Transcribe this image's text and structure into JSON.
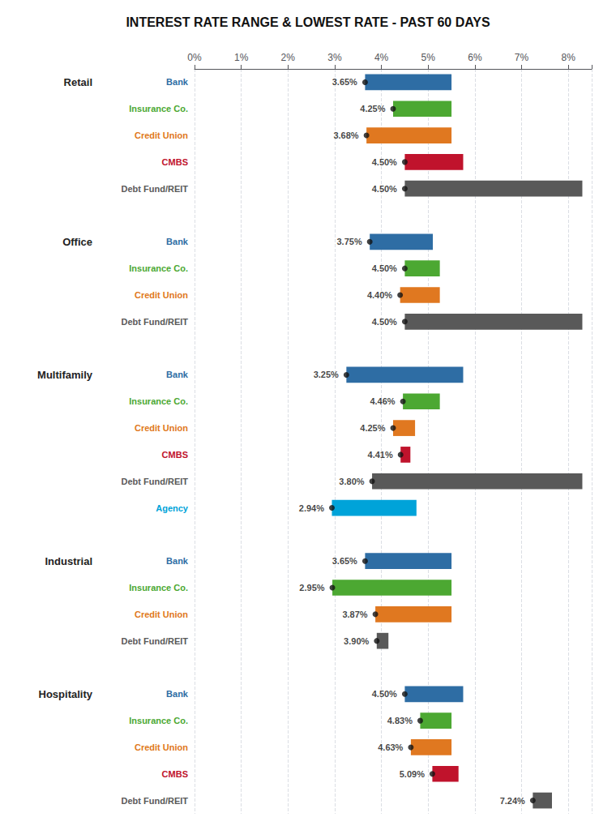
{
  "chart_data": {
    "type": "bar",
    "orientation": "horizontal",
    "title": "INTEREST RATE RANGE & LOWEST RATE - PAST 60 DAYS",
    "xlim": [
      0,
      8.5
    ],
    "xticks": [
      {
        "value": 0,
        "label": "0%"
      },
      {
        "value": 1,
        "label": "1%"
      },
      {
        "value": 2,
        "label": "2%"
      },
      {
        "value": 3,
        "label": "3%"
      },
      {
        "value": 4,
        "label": "4%"
      },
      {
        "value": 5,
        "label": "5%"
      },
      {
        "value": 6,
        "label": "6%"
      },
      {
        "value": 7,
        "label": "7%"
      },
      {
        "value": 8,
        "label": "8%"
      }
    ],
    "grid": true,
    "data_labels": true,
    "groups": [
      {
        "name": "Retail",
        "categories": [
          "Bank",
          "Insurance Co.",
          "Credit Union",
          "CMBS",
          "Debt Fund/REIT"
        ],
        "ranges": [
          [
            3.65,
            5.5
          ],
          [
            4.25,
            5.5
          ],
          [
            3.68,
            5.5
          ],
          [
            4.5,
            5.75
          ],
          [
            4.5,
            8.3
          ]
        ],
        "values": [
          3.65,
          4.25,
          3.68,
          4.5,
          4.5
        ],
        "value_labels": [
          "3.65%",
          "4.25%",
          "3.68%",
          "4.50%",
          "4.50%"
        ],
        "colors": [
          "#2e6da4",
          "#4ca832",
          "#e07820",
          "#c0132c",
          "#595959"
        ]
      },
      {
        "name": "Office",
        "categories": [
          "Bank",
          "Insurance Co.",
          "Credit Union",
          "Debt Fund/REIT"
        ],
        "ranges": [
          [
            3.75,
            5.1
          ],
          [
            4.5,
            5.25
          ],
          [
            4.4,
            5.25
          ],
          [
            4.5,
            8.3
          ]
        ],
        "values": [
          3.75,
          4.5,
          4.4,
          4.5
        ],
        "value_labels": [
          "3.75%",
          "4.50%",
          "4.40%",
          "4.50%"
        ],
        "colors": [
          "#2e6da4",
          "#4ca832",
          "#e07820",
          "#595959"
        ]
      },
      {
        "name": "Multifamily",
        "categories": [
          "Bank",
          "Insurance Co.",
          "Credit Union",
          "CMBS",
          "Debt Fund/REIT",
          "Agency"
        ],
        "ranges": [
          [
            3.25,
            5.75
          ],
          [
            4.46,
            5.25
          ],
          [
            4.25,
            4.72
          ],
          [
            4.41,
            4.62
          ],
          [
            3.8,
            8.3
          ],
          [
            2.94,
            4.75
          ]
        ],
        "values": [
          3.25,
          4.46,
          4.25,
          4.41,
          3.8,
          2.94
        ],
        "value_labels": [
          "3.25%",
          "4.46%",
          "4.25%",
          "4.41%",
          "3.80%",
          "2.94%"
        ],
        "colors": [
          "#2e6da4",
          "#4ca832",
          "#e07820",
          "#c0132c",
          "#595959",
          "#00a3d9"
        ]
      },
      {
        "name": "Industrial",
        "categories": [
          "Bank",
          "Insurance Co.",
          "Credit Union",
          "Debt Fund/REIT"
        ],
        "ranges": [
          [
            3.65,
            5.5
          ],
          [
            2.95,
            5.5
          ],
          [
            3.87,
            5.5
          ],
          [
            3.9,
            4.15
          ]
        ],
        "values": [
          3.65,
          2.95,
          3.87,
          3.9
        ],
        "value_labels": [
          "3.65%",
          "2.95%",
          "3.87%",
          "3.90%"
        ],
        "colors": [
          "#2e6da4",
          "#4ca832",
          "#e07820",
          "#595959"
        ]
      },
      {
        "name": "Hospitality",
        "categories": [
          "Bank",
          "Insurance Co.",
          "Credit Union",
          "CMBS",
          "Debt Fund/REIT"
        ],
        "ranges": [
          [
            4.5,
            5.75
          ],
          [
            4.83,
            5.5
          ],
          [
            4.63,
            5.5
          ],
          [
            5.09,
            5.65
          ],
          [
            7.24,
            7.65
          ]
        ],
        "values": [
          4.5,
          4.83,
          4.63,
          5.09,
          7.24
        ],
        "value_labels": [
          "4.50%",
          "4.83%",
          "4.63%",
          "5.09%",
          "7.24%"
        ],
        "colors": [
          "#2e6da4",
          "#4ca832",
          "#e07820",
          "#c0132c",
          "#595959"
        ]
      }
    ]
  }
}
